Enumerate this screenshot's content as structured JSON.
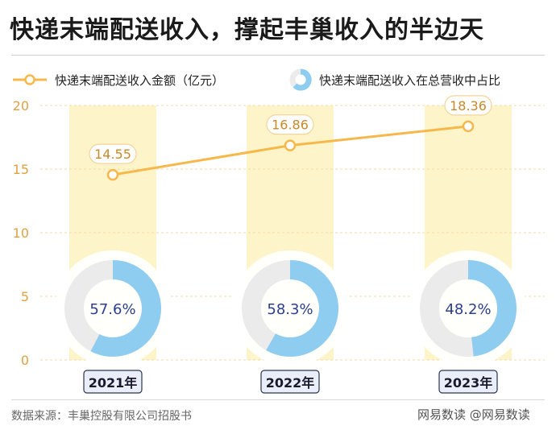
{
  "title": "快递末端配送收入，撑起丰巢收入的半边天",
  "legend": {
    "line_label": "快递末端配送收入金额（亿元）",
    "pie_label": "快递末端配送收入在总营收中占比"
  },
  "source": "数据来源：丰巢控股有限公司招股书",
  "watermark": "网易数读 @网易数读",
  "colors": {
    "line": "#f7b84b",
    "band": "#fdf5c9",
    "donut_fill": "#8fcdf0",
    "donut_rest": "#ebebeb",
    "axis_text": "#e0a143",
    "grid": "#f3d9a6",
    "label_text": "#c8892a",
    "pct_text": "#2c3e8f"
  },
  "chart_data": {
    "type": "line",
    "categories": [
      "2021年",
      "2022年",
      "2023年"
    ],
    "ylim": [
      0,
      20
    ],
    "yticks": [
      "0",
      "5",
      "10",
      "15",
      "20"
    ],
    "series": [
      {
        "values": [
          14.55,
          16.86,
          18.36
        ],
        "labels": [
          "14.55",
          "16.86",
          "18.36"
        ]
      }
    ],
    "share": {
      "values": [
        57.6,
        58.3,
        48.2
      ],
      "labels": [
        "57.6%",
        "58.3%",
        "48.2%"
      ]
    },
    "grid": true
  }
}
